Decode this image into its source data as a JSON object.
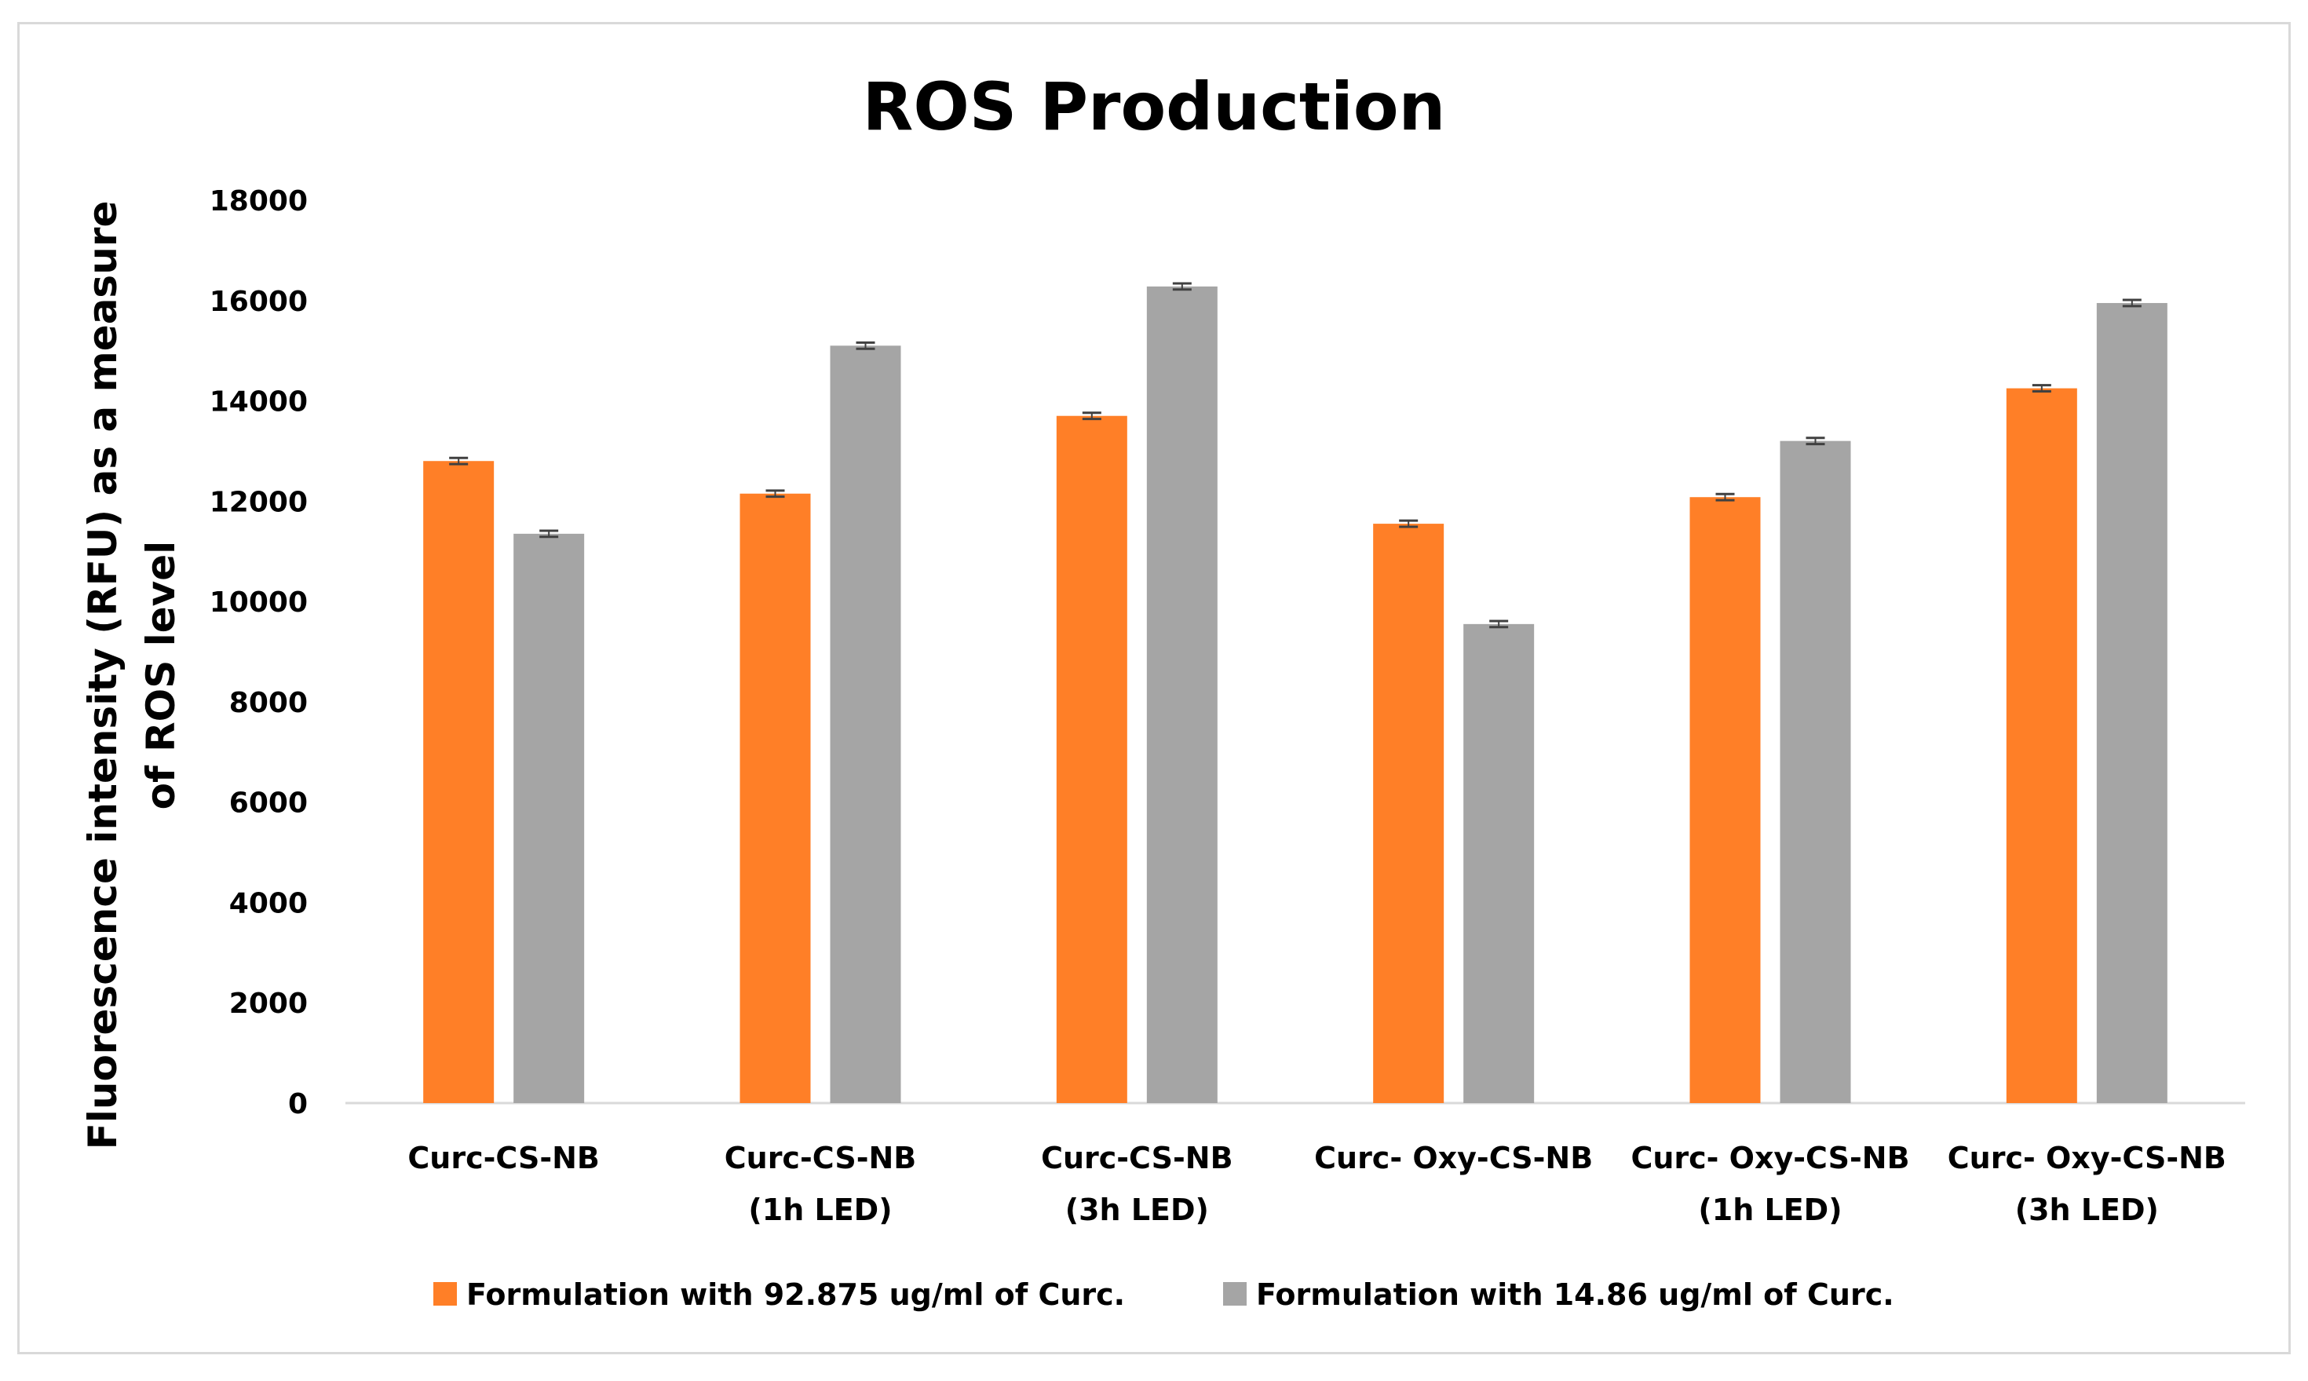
{
  "chart_data": {
    "type": "bar",
    "title": "ROS Production",
    "ylabel_lines": [
      "Fluorescence intensity (RFU) as a measure",
      "of ROS level"
    ],
    "xlabel": "",
    "ylim": [
      0,
      18000
    ],
    "yticks": [
      0,
      2000,
      4000,
      6000,
      8000,
      10000,
      12000,
      14000,
      16000,
      18000
    ],
    "grid": false,
    "legend_position": "bottom",
    "categories": [
      [
        "Curc-CS-NB"
      ],
      [
        "Curc-CS-NB",
        "(1h LED)"
      ],
      [
        "Curc-CS-NB",
        "(3h LED)"
      ],
      [
        "Curc- Oxy-CS-NB"
      ],
      [
        "Curc- Oxy-CS-NB",
        "(1h LED)"
      ],
      [
        "Curc- Oxy-CS-NB",
        "(3h LED)"
      ]
    ],
    "series": [
      {
        "name": "Formulation with 92.875 ug/ml of Curc.",
        "color": "#FF7F27",
        "values": [
          12800,
          12150,
          13700,
          11550,
          12080,
          14250
        ],
        "errors": [
          30,
          30,
          30,
          30,
          30,
          30
        ]
      },
      {
        "name": "Formulation with 14.86 ug/ml of Curc.",
        "color": "#A5A5A5",
        "values": [
          11350,
          15100,
          16280,
          9550,
          13200,
          15950
        ],
        "errors": [
          30,
          30,
          30,
          30,
          30,
          30
        ]
      }
    ]
  }
}
